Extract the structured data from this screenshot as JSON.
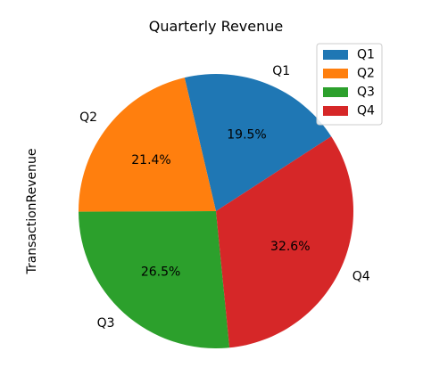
{
  "chart_data": {
    "type": "pie",
    "title": "Quarterly Revenue",
    "ylabel": "TransactionRevenue",
    "categories": [
      "Q1",
      "Q2",
      "Q3",
      "Q4"
    ],
    "percent_labels": [
      "19.5%",
      "21.4%",
      "26.5%",
      "32.6%"
    ],
    "values": [
      19.5,
      21.4,
      26.5,
      32.6
    ],
    "colors": [
      "#1f77b4",
      "#ff7f0e",
      "#2ca02c",
      "#d62728"
    ],
    "legend_placement": "top-right",
    "start_angle_deg": 33,
    "direction": "counterclockwise"
  }
}
